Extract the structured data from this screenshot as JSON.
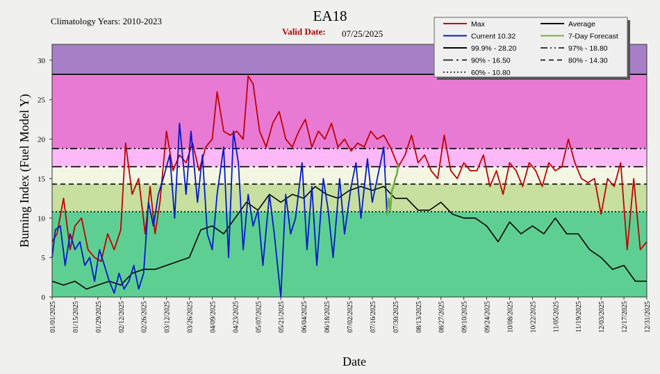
{
  "header": {
    "title": "EA18",
    "climatology": "Climatology Years: 2010-2023",
    "valid_label": "Valid Date:",
    "valid_date": "07/25/2025"
  },
  "legend": [
    {
      "label": "Max",
      "color": "#c00000",
      "style": "solid"
    },
    {
      "label": "Average",
      "color": "#000000",
      "style": "solid"
    },
    {
      "label": "Current 10.32",
      "color": "#0018c8",
      "style": "solid"
    },
    {
      "label": "7-Day Forecast",
      "color": "#6fb040",
      "style": "solid"
    },
    {
      "label": "99.9% -  28.20",
      "color": "#000000",
      "style": "solid"
    },
    {
      "label": "97% -  18.80",
      "color": "#000000",
      "style": "dashdotdot"
    },
    {
      "label": "90% -  16.50",
      "color": "#000000",
      "style": "dashdot"
    },
    {
      "label": "80% -  14.30",
      "color": "#000000",
      "style": "dash"
    },
    {
      "label": "60% -  10.80",
      "color": "#000000",
      "style": "dot"
    }
  ],
  "colors": {
    "band_above_999": "#a77fc6",
    "band_97_999": "#e87ad4",
    "band_90_97": "#fdb9f7",
    "band_80_90": "#f4f6e4",
    "band_60_80": "#c7df9f",
    "band_below_60": "#5ecf92",
    "max": "#c00000",
    "average": "#000000",
    "current": "#0018c8",
    "forecast": "#6fb040"
  },
  "chart_data": {
    "type": "line",
    "xlabel": "Date",
    "ylabel": "Burning Index (Fuel Model Y)",
    "ylim": [
      0,
      32
    ],
    "yticks": [
      0,
      5,
      10,
      15,
      20,
      25,
      30
    ],
    "xlim": [
      "01/01/2025",
      "12/31/2025"
    ],
    "xtick_labels": [
      "01/01/2025",
      "01/15/2025",
      "01/29/2025",
      "02/12/2025",
      "02/26/2025",
      "03/12/2025",
      "03/26/2025",
      "04/09/2025",
      "04/23/2025",
      "05/07/2025",
      "05/21/2025",
      "06/04/2025",
      "06/18/2025",
      "07/02/2025",
      "07/16/2025",
      "07/30/2025",
      "08/13/2025",
      "08/27/2025",
      "09/10/2025",
      "09/24/2025",
      "10/08/2025",
      "10/22/2025",
      "11/05/2025",
      "11/19/2025",
      "12/03/2025",
      "12/17/2025",
      "12/31/2025"
    ],
    "percentiles": [
      {
        "name": "99.9%",
        "value": 28.2
      },
      {
        "name": "97%",
        "value": 18.8
      },
      {
        "name": "90%",
        "value": 16.5
      },
      {
        "name": "80%",
        "value": 14.3
      },
      {
        "name": "60%",
        "value": 10.8
      }
    ],
    "series": [
      {
        "name": "Max",
        "points": [
          [
            "01/01/2025",
            7
          ],
          [
            "01/04/2025",
            8
          ],
          [
            "01/08/2025",
            12.5
          ],
          [
            "01/12/2025",
            6
          ],
          [
            "01/15/2025",
            9
          ],
          [
            "01/19/2025",
            10
          ],
          [
            "01/23/2025",
            6
          ],
          [
            "01/27/2025",
            5
          ],
          [
            "01/31/2025",
            4.5
          ],
          [
            "02/04/2025",
            8
          ],
          [
            "02/08/2025",
            6
          ],
          [
            "02/12/2025",
            8.5
          ],
          [
            "02/15/2025",
            19.5
          ],
          [
            "02/19/2025",
            13
          ],
          [
            "02/23/2025",
            15
          ],
          [
            "02/27/2025",
            8
          ],
          [
            "03/02/2025",
            14
          ],
          [
            "03/05/2025",
            8
          ],
          [
            "03/08/2025",
            12
          ],
          [
            "03/12/2025",
            21
          ],
          [
            "03/16/2025",
            16
          ],
          [
            "03/20/2025",
            18
          ],
          [
            "03/24/2025",
            17
          ],
          [
            "03/28/2025",
            19.5
          ],
          [
            "04/01/2025",
            16
          ],
          [
            "04/05/2025",
            19
          ],
          [
            "04/09/2025",
            20
          ],
          [
            "04/12/2025",
            26
          ],
          [
            "04/16/2025",
            21
          ],
          [
            "04/20/2025",
            20.5
          ],
          [
            "04/24/2025",
            21
          ],
          [
            "04/28/2025",
            20
          ],
          [
            "05/01/2025",
            28
          ],
          [
            "05/04/2025",
            27
          ],
          [
            "05/08/2025",
            21
          ],
          [
            "05/12/2025",
            19
          ],
          [
            "05/16/2025",
            22
          ],
          [
            "05/20/2025",
            23.5
          ],
          [
            "05/24/2025",
            20
          ],
          [
            "05/28/2025",
            19
          ],
          [
            "06/01/2025",
            21
          ],
          [
            "06/05/2025",
            22.5
          ],
          [
            "06/09/2025",
            19
          ],
          [
            "06/13/2025",
            21
          ],
          [
            "06/17/2025",
            20
          ],
          [
            "06/21/2025",
            22
          ],
          [
            "06/25/2025",
            19
          ],
          [
            "06/29/2025",
            20
          ],
          [
            "07/03/2025",
            18.5
          ],
          [
            "07/07/2025",
            19.5
          ],
          [
            "07/11/2025",
            19
          ],
          [
            "07/15/2025",
            21
          ],
          [
            "07/19/2025",
            20
          ],
          [
            "07/23/2025",
            20.5
          ],
          [
            "07/27/2025",
            19
          ],
          [
            "08/01/2025",
            16.5
          ],
          [
            "08/05/2025",
            18
          ],
          [
            "08/09/2025",
            20.5
          ],
          [
            "08/13/2025",
            17
          ],
          [
            "08/17/2025",
            18
          ],
          [
            "08/21/2025",
            16
          ],
          [
            "08/25/2025",
            15
          ],
          [
            "08/29/2025",
            20.5
          ],
          [
            "09/02/2025",
            16
          ],
          [
            "09/06/2025",
            15
          ],
          [
            "09/10/2025",
            17
          ],
          [
            "09/14/2025",
            16
          ],
          [
            "09/18/2025",
            16
          ],
          [
            "09/22/2025",
            18
          ],
          [
            "09/26/2025",
            14
          ],
          [
            "09/30/2025",
            16
          ],
          [
            "10/04/2025",
            13
          ],
          [
            "10/08/2025",
            17
          ],
          [
            "10/12/2025",
            16
          ],
          [
            "10/16/2025",
            14
          ],
          [
            "10/20/2025",
            17
          ],
          [
            "10/24/2025",
            16
          ],
          [
            "10/28/2025",
            14
          ],
          [
            "11/01/2025",
            17
          ],
          [
            "11/05/2025",
            16
          ],
          [
            "11/09/2025",
            16.5
          ],
          [
            "11/13/2025",
            20
          ],
          [
            "11/17/2025",
            17
          ],
          [
            "11/21/2025",
            15
          ],
          [
            "11/25/2025",
            14.5
          ],
          [
            "11/29/2025",
            15
          ],
          [
            "12/03/2025",
            10.5
          ],
          [
            "12/07/2025",
            15
          ],
          [
            "12/11/2025",
            14
          ],
          [
            "12/15/2025",
            17
          ],
          [
            "12/19/2025",
            6
          ],
          [
            "12/23/2025",
            15
          ],
          [
            "12/27/2025",
            6
          ],
          [
            "12/31/2025",
            7
          ]
        ]
      },
      {
        "name": "Average",
        "points": [
          [
            "01/01/2025",
            2
          ],
          [
            "01/08/2025",
            1.5
          ],
          [
            "01/15/2025",
            2
          ],
          [
            "01/22/2025",
            1
          ],
          [
            "01/29/2025",
            1.5
          ],
          [
            "02/05/2025",
            2
          ],
          [
            "02/12/2025",
            1.5
          ],
          [
            "02/19/2025",
            3
          ],
          [
            "02/26/2025",
            3.5
          ],
          [
            "03/05/2025",
            3.5
          ],
          [
            "03/12/2025",
            4
          ],
          [
            "03/19/2025",
            4.5
          ],
          [
            "03/26/2025",
            5
          ],
          [
            "04/02/2025",
            8.5
          ],
          [
            "04/09/2025",
            9
          ],
          [
            "04/16/2025",
            8
          ],
          [
            "04/23/2025",
            10
          ],
          [
            "04/30/2025",
            12
          ],
          [
            "05/07/2025",
            11
          ],
          [
            "05/14/2025",
            13
          ],
          [
            "05/21/2025",
            12
          ],
          [
            "05/28/2025",
            13
          ],
          [
            "06/04/2025",
            12.5
          ],
          [
            "06/11/2025",
            14
          ],
          [
            "06/18/2025",
            13
          ],
          [
            "06/25/2025",
            12.5
          ],
          [
            "07/02/2025",
            13.5
          ],
          [
            "07/09/2025",
            14
          ],
          [
            "07/16/2025",
            13.5
          ],
          [
            "07/23/2025",
            14
          ],
          [
            "07/30/2025",
            12.5
          ],
          [
            "08/06/2025",
            12.5
          ],
          [
            "08/13/2025",
            11
          ],
          [
            "08/20/2025",
            11
          ],
          [
            "08/27/2025",
            12
          ],
          [
            "09/03/2025",
            10.5
          ],
          [
            "09/10/2025",
            10
          ],
          [
            "09/17/2025",
            10
          ],
          [
            "09/24/2025",
            9
          ],
          [
            "10/01/2025",
            7
          ],
          [
            "10/08/2025",
            9.5
          ],
          [
            "10/15/2025",
            8
          ],
          [
            "10/22/2025",
            9
          ],
          [
            "10/29/2025",
            8
          ],
          [
            "11/05/2025",
            10
          ],
          [
            "11/12/2025",
            8
          ],
          [
            "11/19/2025",
            8
          ],
          [
            "11/26/2025",
            6
          ],
          [
            "12/03/2025",
            5
          ],
          [
            "12/10/2025",
            3.5
          ],
          [
            "12/17/2025",
            4
          ],
          [
            "12/24/2025",
            2
          ],
          [
            "12/31/2025",
            2
          ]
        ]
      },
      {
        "name": "Current 10.32",
        "points": [
          [
            "01/01/2025",
            5
          ],
          [
            "01/03/2025",
            8.5
          ],
          [
            "01/06/2025",
            9
          ],
          [
            "01/09/2025",
            4
          ],
          [
            "01/12/2025",
            8
          ],
          [
            "01/15/2025",
            6
          ],
          [
            "01/18/2025",
            7
          ],
          [
            "01/21/2025",
            4
          ],
          [
            "01/24/2025",
            5
          ],
          [
            "01/27/2025",
            2
          ],
          [
            "01/30/2025",
            6
          ],
          [
            "02/02/2025",
            4
          ],
          [
            "02/05/2025",
            2
          ],
          [
            "02/08/2025",
            0.5
          ],
          [
            "02/11/2025",
            3
          ],
          [
            "02/14/2025",
            1
          ],
          [
            "02/17/2025",
            2
          ],
          [
            "02/20/2025",
            4
          ],
          [
            "02/23/2025",
            1
          ],
          [
            "02/26/2025",
            3
          ],
          [
            "03/01/2025",
            12
          ],
          [
            "03/04/2025",
            9
          ],
          [
            "03/07/2025",
            13
          ],
          [
            "03/10/2025",
            15
          ],
          [
            "03/14/2025",
            18
          ],
          [
            "03/17/2025",
            10
          ],
          [
            "03/20/2025",
            22
          ],
          [
            "03/24/2025",
            13
          ],
          [
            "03/27/2025",
            21
          ],
          [
            "03/31/2025",
            12
          ],
          [
            "04/03/2025",
            18
          ],
          [
            "04/06/2025",
            8
          ],
          [
            "04/09/2025",
            6
          ],
          [
            "04/12/2025",
            13
          ],
          [
            "04/16/2025",
            19
          ],
          [
            "04/19/2025",
            5
          ],
          [
            "04/22/2025",
            21
          ],
          [
            "04/25/2025",
            17
          ],
          [
            "04/28/2025",
            6
          ],
          [
            "05/01/2025",
            13
          ],
          [
            "05/04/2025",
            9
          ],
          [
            "05/07/2025",
            11
          ],
          [
            "05/10/2025",
            4
          ],
          [
            "05/14/2025",
            13
          ],
          [
            "05/17/2025",
            8
          ],
          [
            "05/21/2025",
            0
          ],
          [
            "05/24/2025",
            13
          ],
          [
            "05/27/2025",
            8
          ],
          [
            "05/30/2025",
            10
          ],
          [
            "06/03/2025",
            17
          ],
          [
            "06/06/2025",
            6
          ],
          [
            "06/09/2025",
            14
          ],
          [
            "06/12/2025",
            4
          ],
          [
            "06/16/2025",
            15
          ],
          [
            "06/19/2025",
            11
          ],
          [
            "06/22/2025",
            5
          ],
          [
            "06/26/2025",
            15
          ],
          [
            "06/29/2025",
            8
          ],
          [
            "07/03/2025",
            14
          ],
          [
            "07/06/2025",
            17
          ],
          [
            "07/09/2025",
            10
          ],
          [
            "07/13/2025",
            17.5
          ],
          [
            "07/16/2025",
            12
          ],
          [
            "07/19/2025",
            15
          ],
          [
            "07/23/2025",
            19
          ],
          [
            "07/25/2025",
            10.32
          ]
        ]
      },
      {
        "name": "7-Day Forecast",
        "points": [
          [
            "07/25/2025",
            10.32
          ],
          [
            "07/26/2025",
            12.5
          ],
          [
            "07/27/2025",
            11
          ],
          [
            "07/28/2025",
            13.5
          ],
          [
            "07/29/2025",
            14
          ],
          [
            "07/30/2025",
            15
          ],
          [
            "07/31/2025",
            15.5
          ],
          [
            "08/01/2025",
            17
          ]
        ]
      }
    ]
  }
}
